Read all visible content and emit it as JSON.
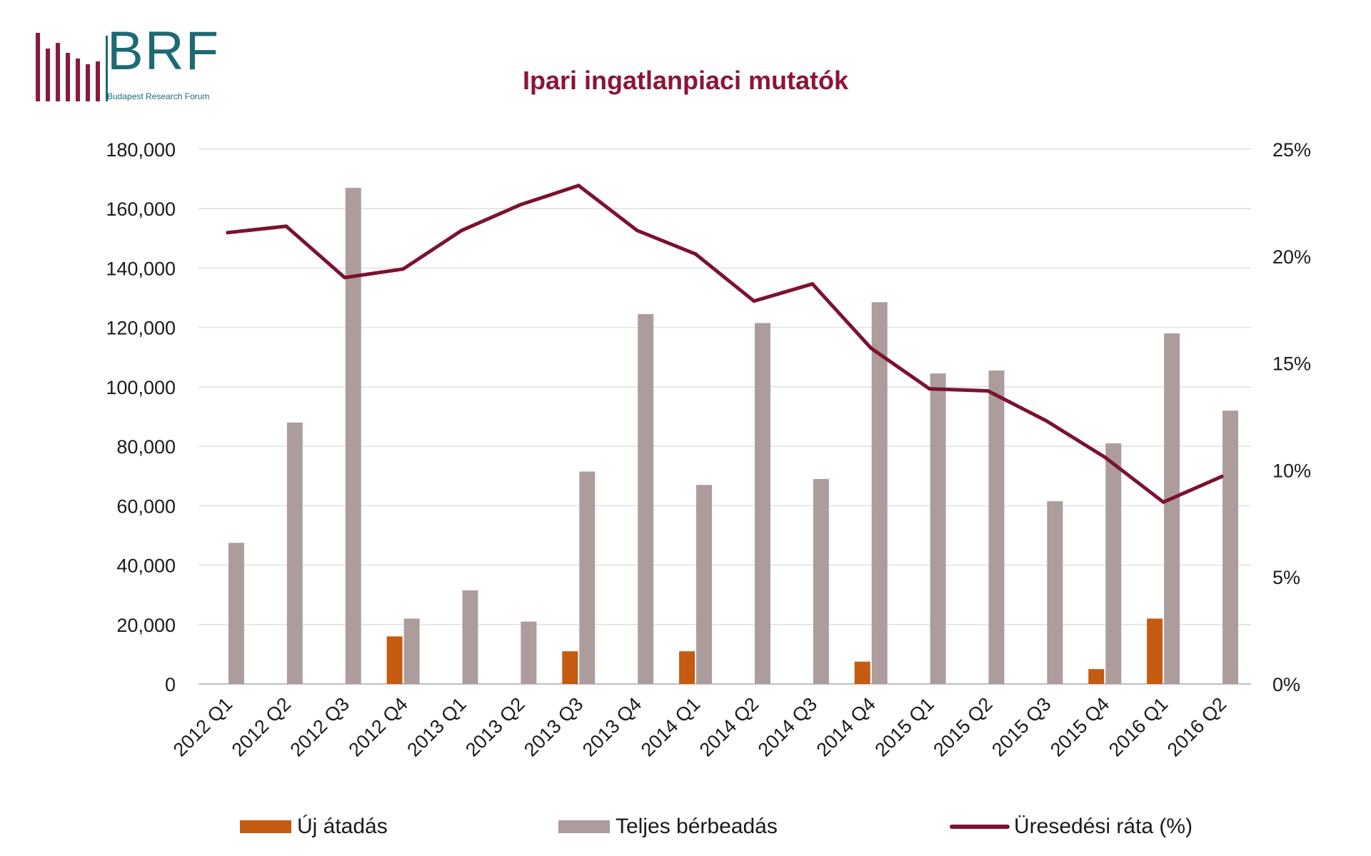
{
  "logo": {
    "text": "BRF",
    "subtitle": "Budapest Research Forum"
  },
  "colors": {
    "new": "#c55a11",
    "total": "#ad9c9c",
    "vacancy": "#7b1230",
    "title": "#8b1538",
    "logo": "#1c6a72"
  },
  "chart_data": {
    "type": "bar",
    "title": "Ipari ingatlanpiaci mutatók",
    "categories": [
      "2012 Q1",
      "2012 Q2",
      "2012 Q3",
      "2012 Q4",
      "2013 Q1",
      "2013 Q2",
      "2013 Q3",
      "2013 Q4",
      "2014 Q1",
      "2014 Q2",
      "2014 Q3",
      "2014 Q4",
      "2015 Q1",
      "2015 Q2",
      "2015 Q3",
      "2015 Q4",
      "2016 Q1",
      "2016 Q2"
    ],
    "series": [
      {
        "name": "Új átadás",
        "type": "bar",
        "axis": "left",
        "values": [
          0,
          0,
          0,
          16000,
          0,
          0,
          11000,
          0,
          11000,
          0,
          0,
          7500,
          0,
          0,
          0,
          5000,
          22000,
          0
        ]
      },
      {
        "name": "Teljes bérbeadás",
        "type": "bar",
        "axis": "left",
        "values": [
          47500,
          88000,
          167000,
          22000,
          31500,
          21000,
          71500,
          124500,
          67000,
          121500,
          69000,
          128500,
          104500,
          105500,
          61500,
          81000,
          118000,
          92000
        ]
      },
      {
        "name": "Üresedési ráta (%)",
        "type": "line",
        "axis": "right",
        "values": [
          21.1,
          21.4,
          19.0,
          19.4,
          21.2,
          22.4,
          23.3,
          21.2,
          20.1,
          17.9,
          18.7,
          15.7,
          13.8,
          13.7,
          12.3,
          10.6,
          8.5,
          9.7
        ]
      }
    ],
    "y_left": {
      "lim": [
        0,
        180000
      ],
      "ticks": [
        "0",
        "20,000",
        "40,000",
        "60,000",
        "80,000",
        "100,000",
        "120,000",
        "140,000",
        "160,000",
        "180,000"
      ]
    },
    "y_right": {
      "lim": [
        0,
        25
      ],
      "ticks": [
        "0%",
        "5%",
        "10%",
        "15%",
        "20%",
        "25%"
      ]
    },
    "grid": true,
    "legend": "bottom"
  }
}
